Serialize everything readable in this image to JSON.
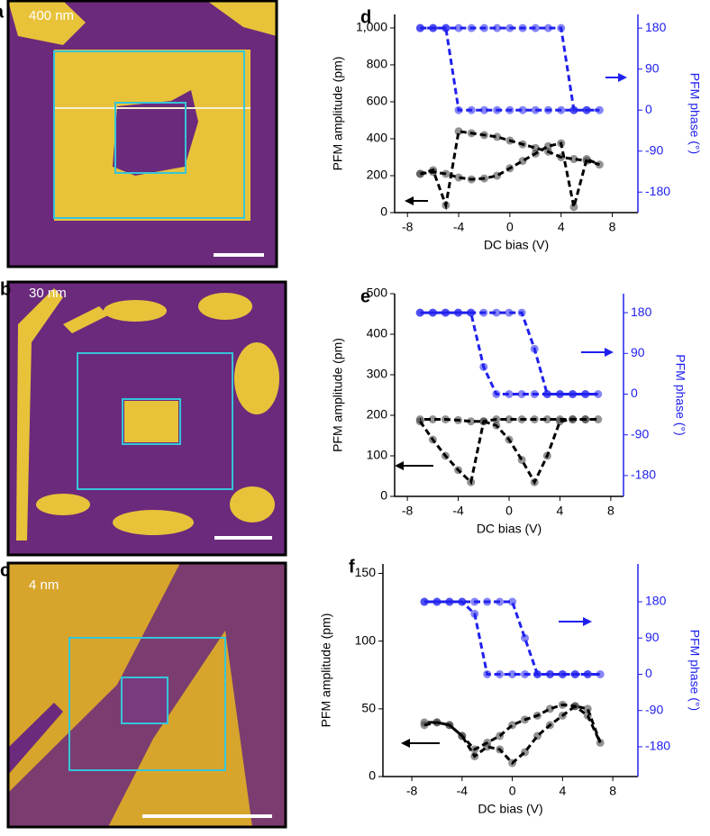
{
  "images": [
    {
      "letter": "a",
      "scale_label": "400 nm"
    },
    {
      "letter": "b",
      "scale_label": "30 nm"
    },
    {
      "letter": "c",
      "scale_label": "4 nm"
    }
  ],
  "chart_data": [
    {
      "type": "line",
      "panel": "d",
      "xlabel": "DC bias (V)",
      "ylabel": "PFM amplitude (pm)",
      "y2label": "PFM phase (°)",
      "xlim": [
        -9,
        10
      ],
      "xticks": [
        -8,
        -4,
        0,
        4,
        8
      ],
      "ylim": [
        0,
        1073
      ],
      "yticks": [
        0,
        200,
        400,
        600,
        800,
        {
          "value": 1000,
          "label": "1,000"
        }
      ],
      "y2lim": [
        -225,
        210
      ],
      "y2ticks": [
        -180,
        -90,
        0,
        90,
        180
      ],
      "x": [
        -7,
        -6,
        -5,
        -4,
        -3,
        -2,
        -1,
        0,
        1,
        2,
        3,
        4,
        5,
        6,
        7,
        6,
        5,
        4,
        3,
        2,
        1,
        0,
        -1,
        -2,
        -3,
        -4,
        -5,
        -6,
        -7
      ],
      "series": [
        {
          "name": "PFM amplitude",
          "color": "#3a3a3a",
          "values": [
            210,
            220,
            210,
            190,
            180,
            185,
            200,
            240,
            280,
            320,
            360,
            375,
            30,
            290,
            260,
            280,
            290,
            300,
            330,
            350,
            370,
            390,
            410,
            420,
            430,
            440,
            40,
            230,
            210
          ]
        },
        {
          "name": "PFM phase",
          "color": "#2020ee",
          "axis": "y2",
          "values": [
            180,
            180,
            180,
            180,
            180,
            180,
            180,
            180,
            180,
            180,
            180,
            180,
            0,
            0,
            0,
            0,
            0,
            0,
            0,
            0,
            0,
            0,
            0,
            0,
            0,
            0,
            180,
            180,
            180
          ]
        }
      ]
    },
    {
      "type": "line",
      "panel": "e",
      "xlabel": "DC bias (V)",
      "ylabel": "PFM amplitude (pm)",
      "y2label": "PFM phase (°)",
      "xlim": [
        -9,
        9
      ],
      "xticks": [
        -8,
        -4,
        0,
        4,
        8
      ],
      "ylim": [
        0,
        500
      ],
      "yticks": [
        0,
        100,
        200,
        300,
        400,
        500
      ],
      "y2lim": [
        -226,
        222
      ],
      "y2ticks": [
        -180,
        -90,
        0,
        90,
        180
      ],
      "x": [
        -7,
        -6,
        -5,
        -4,
        -3,
        -2,
        -1,
        0,
        1,
        2,
        3,
        4,
        5,
        6,
        7,
        6,
        5,
        4,
        3,
        2,
        1,
        0,
        -1,
        -2,
        -3,
        -4,
        -5,
        -6,
        -7
      ],
      "series": [
        {
          "name": "PFM amplitude",
          "color": "#3a3a3a",
          "values": [
            185,
            140,
            100,
            65,
            35,
            185,
            190,
            190,
            190,
            190,
            190,
            190,
            190,
            190,
            190,
            190,
            190,
            185,
            100,
            35,
            90,
            140,
            175,
            185,
            185,
            188,
            190,
            190,
            190
          ]
        },
        {
          "name": "PFM phase",
          "color": "#2020ee",
          "axis": "y2",
          "values": [
            180,
            180,
            180,
            180,
            180,
            180,
            180,
            180,
            180,
            100,
            0,
            0,
            0,
            0,
            0,
            0,
            0,
            0,
            0,
            0,
            0,
            0,
            0,
            60,
            180,
            180,
            180,
            180,
            180
          ]
        }
      ]
    },
    {
      "type": "line",
      "panel": "f",
      "xlabel": "DC bias (V)",
      "ylabel": "PFM amplitude (pm)",
      "y2label": "PFM phase (°)",
      "xlim": [
        -10.3,
        10
      ],
      "xticks": [
        -8,
        -4,
        0,
        4,
        8
      ],
      "ylim": [
        0,
        157
      ],
      "yticks": [
        0,
        50,
        100,
        150
      ],
      "y2lim": [
        -254,
        274
      ],
      "y2ticks": [
        -180,
        -90,
        0,
        90,
        180
      ],
      "x": [
        -7,
        -6,
        -5,
        -4,
        -3,
        -2,
        -1,
        0,
        1,
        2,
        3,
        4,
        5,
        6,
        7,
        6,
        5,
        4,
        3,
        2,
        1,
        0,
        -1,
        -2,
        -3,
        -4,
        -5,
        -6,
        -7
      ],
      "series": [
        {
          "name": "PFM amplitude",
          "color": "#3a3a3a",
          "values": [
            38,
            40,
            38,
            30,
            20,
            25,
            30,
            38,
            42,
            45,
            50,
            53,
            52,
            45,
            25,
            50,
            52,
            45,
            38,
            30,
            18,
            10,
            20,
            22,
            15,
            30,
            38,
            40,
            40
          ]
        },
        {
          "name": "PFM phase",
          "color": "#2020ee",
          "axis": "y2",
          "values": [
            180,
            180,
            180,
            180,
            180,
            180,
            180,
            180,
            90,
            0,
            0,
            0,
            0,
            0,
            0,
            0,
            0,
            0,
            0,
            0,
            0,
            0,
            0,
            0,
            150,
            180,
            180,
            180,
            180
          ]
        }
      ]
    }
  ]
}
